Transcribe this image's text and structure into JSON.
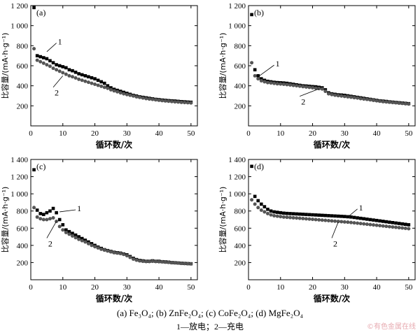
{
  "caption_line1": "(a) Fe₃O₄; (b) ZnFe₂O₄; (c) CoFe₂O₄; (d) MgFe₂O₄",
  "caption_line2": "1—放电；2—充电",
  "watermark": "©有色金属在线",
  "colors": {
    "series1": "#000000",
    "series2": "#555555",
    "axis": "#000000",
    "watermark": "#e7aab0"
  },
  "chart_data": [
    {
      "type": "scatter",
      "panel_label": "(a)",
      "xlabel": "循环数/次",
      "ylabel": "比容量/(mA·h·g⁻¹)",
      "xlim": [
        0,
        52
      ],
      "ylim": [
        0,
        1200
      ],
      "xticks": [
        0,
        10,
        20,
        30,
        40,
        50
      ],
      "yticks": [
        200,
        400,
        600,
        800,
        1000,
        1200
      ],
      "ytick_labels": [
        "200",
        "400",
        "600",
        "800",
        "1 000",
        "1 200"
      ],
      "grid": false,
      "series": [
        {
          "label": "1",
          "marker": "square",
          "x": [
            1,
            2,
            3,
            4,
            5,
            6,
            7,
            8,
            9,
            10,
            11,
            12,
            13,
            14,
            15,
            16,
            17,
            18,
            19,
            20,
            21,
            22,
            23,
            24,
            25,
            26,
            27,
            28,
            29,
            30,
            31,
            32,
            33,
            34,
            35,
            36,
            37,
            38,
            39,
            40,
            41,
            42,
            43,
            44,
            45,
            46,
            47,
            48,
            49,
            50
          ],
          "y": [
            1180,
            700,
            690,
            680,
            670,
            650,
            630,
            610,
            600,
            590,
            580,
            560,
            550,
            535,
            520,
            510,
            500,
            490,
            480,
            470,
            455,
            440,
            425,
            400,
            380,
            365,
            355,
            345,
            335,
            325,
            315,
            305,
            298,
            290,
            285,
            280,
            275,
            270,
            265,
            262,
            258,
            255,
            252,
            250,
            248,
            245,
            242,
            240,
            238,
            236
          ]
        },
        {
          "label": "2",
          "marker": "circle",
          "x": [
            1,
            2,
            3,
            4,
            5,
            6,
            7,
            8,
            9,
            10,
            11,
            12,
            13,
            14,
            15,
            16,
            17,
            18,
            19,
            20,
            21,
            22,
            23,
            24,
            25,
            26,
            27,
            28,
            29,
            30,
            31,
            32,
            33,
            34,
            35,
            36,
            37,
            38,
            39,
            40,
            41,
            42,
            43,
            44,
            45,
            46,
            47,
            48,
            49,
            50
          ],
          "y": [
            770,
            655,
            640,
            625,
            610,
            595,
            575,
            560,
            545,
            530,
            515,
            500,
            490,
            478,
            465,
            455,
            445,
            435,
            425,
            415,
            405,
            395,
            385,
            375,
            360,
            350,
            340,
            330,
            320,
            312,
            305,
            298,
            290,
            284,
            278,
            272,
            268,
            264,
            260,
            256,
            252,
            249,
            246,
            243,
            240,
            238,
            235,
            233,
            231,
            229
          ]
        }
      ]
    },
    {
      "type": "scatter",
      "panel_label": "(b)",
      "xlabel": "循环数/次",
      "ylabel": "比容量/(mA·h·g⁻¹)",
      "xlim": [
        0,
        52
      ],
      "ylim": [
        0,
        1200
      ],
      "xticks": [
        0,
        10,
        20,
        30,
        40,
        50
      ],
      "yticks": [
        200,
        400,
        600,
        800,
        1000,
        1200
      ],
      "ytick_labels": [
        "200",
        "400",
        "600",
        "800",
        "1 000",
        "1 200"
      ],
      "grid": false,
      "series": [
        {
          "label": "1",
          "marker": "square",
          "x": [
            1,
            2,
            3,
            4,
            5,
            6,
            7,
            8,
            9,
            10,
            11,
            12,
            13,
            14,
            15,
            16,
            17,
            18,
            19,
            20,
            21,
            22,
            23,
            24,
            25,
            26,
            27,
            28,
            29,
            30,
            31,
            32,
            33,
            34,
            35,
            36,
            37,
            38,
            39,
            40,
            41,
            42,
            43,
            44,
            45,
            46,
            47,
            48,
            49,
            50
          ],
          "y": [
            1110,
            560,
            500,
            470,
            455,
            445,
            440,
            435,
            432,
            430,
            428,
            425,
            420,
            415,
            410,
            405,
            400,
            398,
            395,
            392,
            390,
            385,
            380,
            360,
            330,
            320,
            315,
            310,
            308,
            305,
            300,
            295,
            290,
            285,
            280,
            275,
            270,
            265,
            260,
            255,
            250,
            247,
            244,
            240,
            237,
            234,
            231,
            228,
            225,
            222
          ]
        },
        {
          "label": "2",
          "marker": "circle",
          "x": [
            1,
            2,
            3,
            4,
            5,
            6,
            7,
            8,
            9,
            10,
            11,
            12,
            13,
            14,
            15,
            16,
            17,
            18,
            19,
            20,
            21,
            22,
            23,
            24,
            25,
            26,
            27,
            28,
            29,
            30,
            31,
            32,
            33,
            34,
            35,
            36,
            37,
            38,
            39,
            40,
            41,
            42,
            43,
            44,
            45,
            46,
            47,
            48,
            49,
            50
          ],
          "y": [
            630,
            500,
            470,
            450,
            440,
            432,
            428,
            424,
            420,
            418,
            415,
            412,
            408,
            404,
            400,
            396,
            392,
            388,
            385,
            380,
            376,
            372,
            368,
            345,
            320,
            312,
            306,
            302,
            298,
            294,
            290,
            286,
            282,
            278,
            272,
            268,
            264,
            260,
            255,
            250,
            246,
            242,
            239,
            236,
            233,
            230,
            227,
            224,
            221,
            218
          ]
        }
      ]
    },
    {
      "type": "scatter",
      "panel_label": "(c)",
      "xlabel": "循环数/次",
      "ylabel": "比容量/(mA·h·g⁻¹)",
      "xlim": [
        0,
        52
      ],
      "ylim": [
        0,
        1400
      ],
      "xticks": [
        0,
        10,
        20,
        30,
        40,
        50
      ],
      "yticks": [
        200,
        400,
        600,
        800,
        1000,
        1200,
        1400
      ],
      "ytick_labels": [
        "200",
        "400",
        "600",
        "800",
        "1 000",
        "1 200",
        "1 400"
      ],
      "grid": false,
      "series": [
        {
          "label": "1",
          "marker": "square",
          "x": [
            1,
            2,
            3,
            4,
            5,
            6,
            7,
            8,
            9,
            10,
            11,
            12,
            13,
            14,
            15,
            16,
            17,
            18,
            19,
            20,
            21,
            22,
            23,
            24,
            25,
            26,
            27,
            28,
            29,
            30,
            31,
            32,
            33,
            34,
            35,
            36,
            37,
            38,
            39,
            40,
            41,
            42,
            43,
            44,
            45,
            46,
            47,
            48,
            49,
            50
          ],
          "y": [
            1280,
            810,
            770,
            760,
            780,
            800,
            830,
            780,
            700,
            640,
            580,
            560,
            540,
            520,
            500,
            480,
            460,
            440,
            420,
            400,
            380,
            365,
            350,
            340,
            330,
            320,
            315,
            310,
            300,
            290,
            270,
            250,
            235,
            225,
            220,
            215,
            215,
            220,
            215,
            215,
            210,
            208,
            205,
            200,
            198,
            195,
            192,
            190,
            188,
            186
          ]
        },
        {
          "label": "2",
          "marker": "circle",
          "x": [
            1,
            2,
            3,
            4,
            5,
            6,
            7,
            8,
            9,
            10,
            11,
            12,
            13,
            14,
            15,
            16,
            17,
            18,
            19,
            20,
            21,
            22,
            23,
            24,
            25,
            26,
            27,
            28,
            29,
            30,
            31,
            32,
            33,
            34,
            35,
            36,
            37,
            38,
            39,
            40,
            41,
            42,
            43,
            44,
            45,
            46,
            47,
            48,
            49,
            50
          ],
          "y": [
            840,
            730,
            710,
            700,
            700,
            710,
            720,
            680,
            620,
            580,
            550,
            530,
            510,
            490,
            470,
            455,
            440,
            420,
            400,
            385,
            370,
            355,
            345,
            335,
            325,
            315,
            310,
            305,
            295,
            280,
            260,
            240,
            228,
            220,
            215,
            212,
            212,
            215,
            212,
            210,
            208,
            205,
            202,
            198,
            196,
            194,
            190,
            188,
            186,
            184
          ]
        }
      ]
    },
    {
      "type": "scatter",
      "panel_label": "(d)",
      "xlabel": "循环数/次",
      "ylabel": "比容量/(mA·h·g⁻¹)",
      "xlim": [
        0,
        52
      ],
      "ylim": [
        0,
        1400
      ],
      "xticks": [
        0,
        10,
        20,
        30,
        40,
        50
      ],
      "yticks": [
        200,
        400,
        600,
        800,
        1000,
        1200,
        1400
      ],
      "ytick_labels": [
        "200",
        "400",
        "600",
        "800",
        "1 000",
        "1 200",
        "1 400"
      ],
      "grid": false,
      "series": [
        {
          "label": "1",
          "marker": "square",
          "x": [
            1,
            2,
            3,
            4,
            5,
            6,
            7,
            8,
            9,
            10,
            11,
            12,
            13,
            14,
            15,
            16,
            17,
            18,
            19,
            20,
            21,
            22,
            23,
            24,
            25,
            26,
            27,
            28,
            29,
            30,
            31,
            32,
            33,
            34,
            35,
            36,
            37,
            38,
            39,
            40,
            41,
            42,
            43,
            44,
            45,
            46,
            47,
            48,
            49,
            50
          ],
          "y": [
            1320,
            970,
            920,
            880,
            850,
            820,
            800,
            790,
            785,
            780,
            775,
            772,
            770,
            768,
            766,
            764,
            762,
            760,
            758,
            756,
            754,
            752,
            750,
            748,
            746,
            744,
            742,
            740,
            738,
            736,
            733,
            730,
            725,
            720,
            715,
            710,
            705,
            700,
            695,
            690,
            685,
            680,
            675,
            670,
            665,
            660,
            655,
            650,
            645,
            640
          ]
        },
        {
          "label": "2",
          "marker": "circle",
          "x": [
            1,
            2,
            3,
            4,
            5,
            6,
            7,
            8,
            9,
            10,
            11,
            12,
            13,
            14,
            15,
            16,
            17,
            18,
            19,
            20,
            21,
            22,
            23,
            24,
            25,
            26,
            27,
            28,
            29,
            30,
            31,
            32,
            33,
            34,
            35,
            36,
            37,
            38,
            39,
            40,
            41,
            42,
            43,
            44,
            45,
            46,
            47,
            48,
            49,
            50
          ],
          "y": [
            930,
            880,
            840,
            810,
            790,
            770,
            755,
            745,
            740,
            735,
            730,
            727,
            724,
            721,
            718,
            715,
            712,
            709,
            706,
            703,
            700,
            697,
            694,
            691,
            688,
            685,
            682,
            679,
            676,
            673,
            670,
            666,
            662,
            658,
            654,
            650,
            646,
            642,
            638,
            634,
            630,
            626,
            622,
            618,
            614,
            610,
            606,
            602,
            598,
            594
          ]
        }
      ]
    }
  ]
}
